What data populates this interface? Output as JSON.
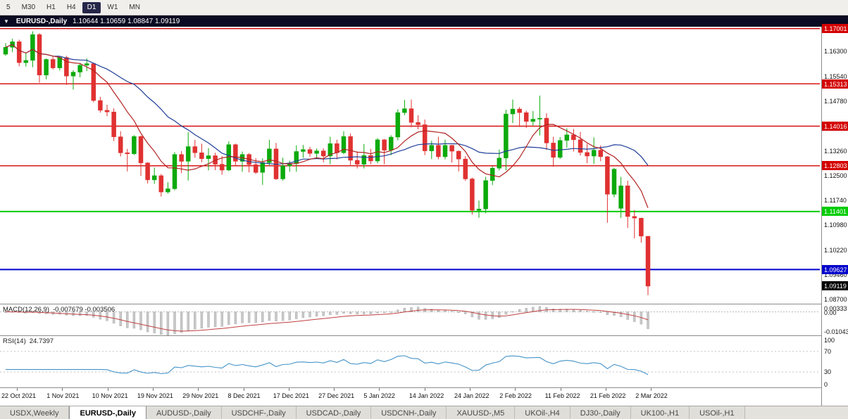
{
  "toolbar": {
    "timeframes": [
      {
        "label": "5",
        "active": false
      },
      {
        "label": "M30",
        "active": false
      },
      {
        "label": "H1",
        "active": false
      },
      {
        "label": "H4",
        "active": false
      },
      {
        "label": "D1",
        "active": true
      },
      {
        "label": "W1",
        "active": false
      },
      {
        "label": "MN",
        "active": false
      }
    ]
  },
  "chart_header": {
    "symbol": "EURUSD-,Daily",
    "ohlc": "1.10644 1.10659 1.08847 1.09119"
  },
  "chart_data": {
    "type": "candlestick",
    "symbol": "EURUSD",
    "timeframe": "Daily",
    "title": "EURUSD-,Daily",
    "price_axis": {
      "min": 1.0858,
      "max": 1.1706,
      "ticks": [
        "1.16300",
        "1.15540",
        "1.14780",
        "1.13260",
        "1.12500",
        "1.11740",
        "1.10980",
        "1.10220",
        "1.09460",
        "1.08700"
      ]
    },
    "time_axis": [
      "22 Oct 2021",
      "1 Nov 2021",
      "10 Nov 2021",
      "19 Nov 2021",
      "29 Nov 2021",
      "8 Dec 2021",
      "17 Dec 2021",
      "27 Dec 2021",
      "5 Jan 2022",
      "14 Jan 2022",
      "24 Jan 2022",
      "2 Feb 2022",
      "11 Feb 2022",
      "21 Feb 2022",
      "2 Mar 2022"
    ],
    "hlines": [
      {
        "price": 1.17001,
        "label": "1.17001",
        "color": "#d40000",
        "width": 1.4
      },
      {
        "price": 1.15313,
        "label": "1.15313",
        "color": "#d40000",
        "width": 1.4
      },
      {
        "price": 1.14016,
        "label": "1.14016",
        "color": "#d40000",
        "width": 1.4
      },
      {
        "price": 1.12803,
        "label": "1.12803",
        "color": "#d40000",
        "width": 1.4
      },
      {
        "price": 1.11401,
        "label": "1.11401",
        "color": "#00cc00",
        "width": 2
      },
      {
        "price": 1.09627,
        "label": "1.09627",
        "color": "#0000cc",
        "width": 2
      }
    ],
    "current_price": {
      "price": 1.09119,
      "label": "1.09119",
      "color": "#000000"
    },
    "colors": {
      "up": "#0caa0c",
      "down": "#e03131",
      "ma_fast": "#b22222",
      "ma_slow": "#1f3f99",
      "rsi": "#4493c8",
      "macd_hist": "#c8c8c8",
      "macd_signal": "#c04040"
    },
    "candles": [
      [
        1.1622,
        1.1656,
        1.1617,
        1.1643
      ],
      [
        1.1643,
        1.1669,
        1.1628,
        1.166
      ],
      [
        1.166,
        1.1666,
        1.1585,
        1.1596
      ],
      [
        1.1596,
        1.1626,
        1.1584,
        1.1603
      ],
      [
        1.1603,
        1.1692,
        1.1582,
        1.1682
      ],
      [
        1.1682,
        1.1686,
        1.1535,
        1.1558
      ],
      [
        1.1558,
        1.1609,
        1.1545,
        1.1606
      ],
      [
        1.1606,
        1.1614,
        1.1575,
        1.158
      ],
      [
        1.158,
        1.1616,
        1.1572,
        1.1612
      ],
      [
        1.1612,
        1.1617,
        1.1528,
        1.1555
      ],
      [
        1.1555,
        1.1573,
        1.1514,
        1.1567
      ],
      [
        1.1567,
        1.1595,
        1.1551,
        1.1588
      ],
      [
        1.1588,
        1.1609,
        1.157,
        1.1593
      ],
      [
        1.1593,
        1.1595,
        1.1475,
        1.148
      ],
      [
        1.148,
        1.1491,
        1.1443,
        1.145
      ],
      [
        1.145,
        1.1467,
        1.1432,
        1.1445
      ],
      [
        1.1445,
        1.1456,
        1.1356,
        1.1369
      ],
      [
        1.1369,
        1.1386,
        1.1309,
        1.132
      ],
      [
        1.132,
        1.1332,
        1.1263,
        1.1317
      ],
      [
        1.1317,
        1.1374,
        1.1313,
        1.137
      ],
      [
        1.137,
        1.1373,
        1.1249,
        1.1289
      ],
      [
        1.1289,
        1.1291,
        1.1226,
        1.1237
      ],
      [
        1.1237,
        1.1275,
        1.1225,
        1.125
      ],
      [
        1.125,
        1.1255,
        1.1186,
        1.12
      ],
      [
        1.12,
        1.123,
        1.1195,
        1.121
      ],
      [
        1.121,
        1.1322,
        1.1205,
        1.1315
      ],
      [
        1.1315,
        1.1325,
        1.1258,
        1.1294
      ],
      [
        1.1294,
        1.1383,
        1.1235,
        1.1339
      ],
      [
        1.1339,
        1.136,
        1.1305,
        1.132
      ],
      [
        1.132,
        1.1348,
        1.1291,
        1.1302
      ],
      [
        1.1302,
        1.1334,
        1.1266,
        1.1311
      ],
      [
        1.1311,
        1.132,
        1.1267,
        1.1285
      ],
      [
        1.1285,
        1.131,
        1.1253,
        1.1267
      ],
      [
        1.1267,
        1.1355,
        1.1264,
        1.1345
      ],
      [
        1.1345,
        1.1348,
        1.128,
        1.1294
      ],
      [
        1.1294,
        1.1324,
        1.1262,
        1.1315
      ],
      [
        1.1315,
        1.1319,
        1.126,
        1.1284
      ],
      [
        1.1284,
        1.1304,
        1.1255,
        1.126
      ],
      [
        1.126,
        1.1303,
        1.1222,
        1.129
      ],
      [
        1.129,
        1.136,
        1.128,
        1.1332
      ],
      [
        1.1332,
        1.135,
        1.1237,
        1.124
      ],
      [
        1.124,
        1.1305,
        1.1235,
        1.128
      ],
      [
        1.128,
        1.1296,
        1.1262,
        1.1287
      ],
      [
        1.1287,
        1.1343,
        1.1262,
        1.1324
      ],
      [
        1.1324,
        1.1344,
        1.1305,
        1.133
      ],
      [
        1.133,
        1.1338,
        1.1308,
        1.1318
      ],
      [
        1.1318,
        1.1333,
        1.1304,
        1.1326
      ],
      [
        1.1326,
        1.1334,
        1.1291,
        1.131
      ],
      [
        1.131,
        1.1369,
        1.1285,
        1.1348
      ],
      [
        1.1348,
        1.136,
        1.13,
        1.132
      ],
      [
        1.132,
        1.1386,
        1.1316,
        1.137
      ],
      [
        1.137,
        1.1379,
        1.1279,
        1.1297
      ],
      [
        1.1297,
        1.1324,
        1.1272,
        1.1285
      ],
      [
        1.1285,
        1.1347,
        1.1272,
        1.1312
      ],
      [
        1.1312,
        1.1332,
        1.1285,
        1.1295
      ],
      [
        1.1295,
        1.1365,
        1.1288,
        1.136
      ],
      [
        1.136,
        1.1362,
        1.1285,
        1.1328
      ],
      [
        1.1328,
        1.1374,
        1.1313,
        1.1368
      ],
      [
        1.1368,
        1.1453,
        1.1358,
        1.1443
      ],
      [
        1.1443,
        1.1482,
        1.1435,
        1.1455
      ],
      [
        1.1455,
        1.1483,
        1.1398,
        1.1413
      ],
      [
        1.1413,
        1.1435,
        1.1392,
        1.1406
      ],
      [
        1.1406,
        1.1422,
        1.1313,
        1.1326
      ],
      [
        1.1326,
        1.1357,
        1.1301,
        1.1343
      ],
      [
        1.1343,
        1.1369,
        1.13,
        1.1308
      ],
      [
        1.1308,
        1.136,
        1.13,
        1.1343
      ],
      [
        1.1343,
        1.1344,
        1.129,
        1.1325
      ],
      [
        1.1325,
        1.1327,
        1.1263,
        1.1301
      ],
      [
        1.1301,
        1.131,
        1.1234,
        1.124
      ],
      [
        1.124,
        1.1244,
        1.1131,
        1.1144
      ],
      [
        1.1144,
        1.1174,
        1.1121,
        1.1148
      ],
      [
        1.1148,
        1.1246,
        1.1135,
        1.1235
      ],
      [
        1.1235,
        1.1279,
        1.1221,
        1.1273
      ],
      [
        1.1273,
        1.133,
        1.1266,
        1.1304
      ],
      [
        1.1304,
        1.1452,
        1.1266,
        1.1439
      ],
      [
        1.1439,
        1.1483,
        1.1411,
        1.1454
      ],
      [
        1.1454,
        1.146,
        1.1399,
        1.1443
      ],
      [
        1.1443,
        1.1449,
        1.1396,
        1.1416
      ],
      [
        1.1416,
        1.1448,
        1.1404,
        1.1423
      ],
      [
        1.1423,
        1.1495,
        1.1373,
        1.1426
      ],
      [
        1.1426,
        1.1441,
        1.1329,
        1.135
      ],
      [
        1.135,
        1.1369,
        1.1277,
        1.1306
      ],
      [
        1.1306,
        1.1368,
        1.1301,
        1.1358
      ],
      [
        1.1358,
        1.1395,
        1.1336,
        1.1375
      ],
      [
        1.1375,
        1.1393,
        1.1324,
        1.136
      ],
      [
        1.136,
        1.1384,
        1.1312,
        1.1321
      ],
      [
        1.1321,
        1.1348,
        1.1288,
        1.131
      ],
      [
        1.131,
        1.1367,
        1.1286,
        1.1328
      ],
      [
        1.1328,
        1.1343,
        1.1294,
        1.1308
      ],
      [
        1.1308,
        1.131,
        1.1106,
        1.1193
      ],
      [
        1.1193,
        1.1274,
        1.1184,
        1.127
      ],
      [
        1.115,
        1.1246,
        1.1121,
        1.1219
      ],
      [
        1.1219,
        1.1235,
        1.109,
        1.1125
      ],
      [
        1.1125,
        1.1145,
        1.1058,
        1.112
      ],
      [
        1.112,
        1.1121,
        1.1045,
        1.1065
      ],
      [
        1.10644,
        1.10659,
        1.08847,
        1.09119
      ]
    ],
    "indicators": {
      "macd": {
        "label": "MACD(12,26,9)",
        "values": "-0.007679 -0.003506",
        "params": [
          12,
          26,
          9
        ],
        "scale_max": 0.00333,
        "scale_min": -0.01043,
        "axis": [
          "0.00333",
          "0.00",
          "-0.01043"
        ]
      },
      "rsi": {
        "label": "RSI(14)",
        "value": "24.7397",
        "period": 14,
        "levels": [
          70,
          30
        ],
        "axis": [
          "100",
          "70",
          "30",
          "0"
        ]
      }
    }
  },
  "bottom_tabs": [
    {
      "label": "USDX,Weekly",
      "active": false
    },
    {
      "label": "EURUSD-,Daily",
      "active": true
    },
    {
      "label": "AUDUSD-,Daily",
      "active": false
    },
    {
      "label": "USDCHF-,Daily",
      "active": false
    },
    {
      "label": "USDCAD-,Daily",
      "active": false
    },
    {
      "label": "USDCNH-,Daily",
      "active": false
    },
    {
      "label": "XAUUSD-,M5",
      "active": false
    },
    {
      "label": "UKOil-,H4",
      "active": false
    },
    {
      "label": "DJ30-,Daily",
      "active": false
    },
    {
      "label": "UK100-,H1",
      "active": false
    },
    {
      "label": "USOil-,H1",
      "active": false
    }
  ]
}
